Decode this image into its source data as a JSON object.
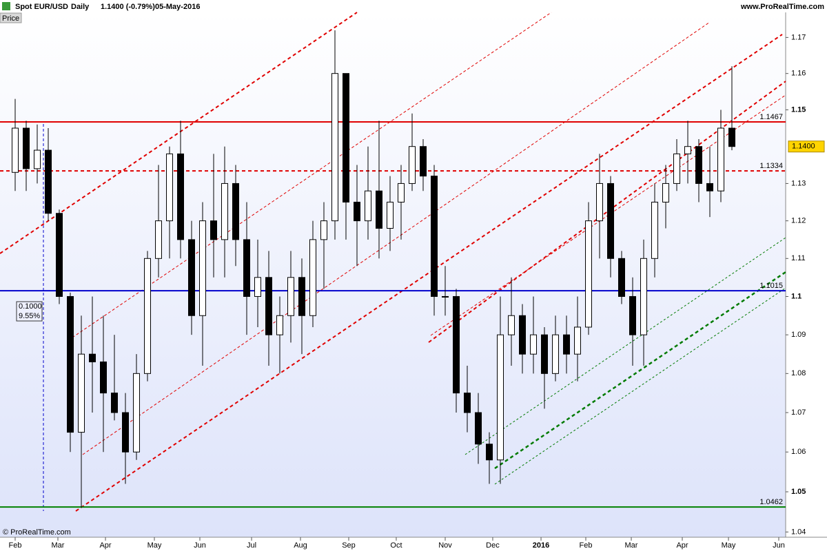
{
  "header": {
    "instrument": "Spot EUR/USD",
    "period": "Daily",
    "quote": "1.1400 (-0.79%)",
    "date": "05-May-2016",
    "site": "www.ProRealTime.com",
    "tab": "Price",
    "copyright": "© ProRealTime.com"
  },
  "chart_data": {
    "type": "candlestick",
    "log_scale": true,
    "up_color": "#ffffff",
    "down_color": "#000000",
    "open": [
      1.133,
      1.145,
      1.134,
      1.139,
      1.122,
      1.1,
      1.065,
      1.085,
      1.083,
      1.075,
      1.07,
      1.06,
      1.08,
      1.11,
      1.12,
      1.138,
      1.115,
      1.095,
      1.12,
      1.115,
      1.13,
      1.115,
      1.1,
      1.105,
      1.09,
      1.095,
      1.105,
      1.095,
      1.115,
      1.12,
      1.16,
      1.125,
      1.12,
      1.128,
      1.118,
      1.125,
      1.13,
      1.14,
      1.132,
      1.1,
      1.1,
      1.075,
      1.07,
      1.062,
      1.058,
      1.09,
      1.095,
      1.085,
      1.09,
      1.08,
      1.09,
      1.085,
      1.092,
      1.12,
      1.13,
      1.11,
      1.1,
      1.09,
      1.11,
      1.125,
      1.13,
      1.138,
      1.14,
      1.13,
      1.128,
      1.145
    ],
    "high": [
      1.153,
      1.147,
      1.146,
      1.145,
      1.123,
      1.101,
      1.095,
      1.1,
      1.095,
      1.09,
      1.075,
      1.085,
      1.112,
      1.135,
      1.14,
      1.147,
      1.12,
      1.125,
      1.138,
      1.14,
      1.135,
      1.125,
      1.115,
      1.112,
      1.1,
      1.112,
      1.11,
      1.12,
      1.125,
      1.172,
      1.16,
      1.135,
      1.14,
      1.147,
      1.132,
      1.135,
      1.149,
      1.142,
      1.135,
      1.108,
      1.102,
      1.082,
      1.075,
      1.065,
      1.1,
      1.105,
      1.098,
      1.1,
      1.092,
      1.095,
      1.095,
      1.1,
      1.125,
      1.138,
      1.132,
      1.112,
      1.105,
      1.115,
      1.13,
      1.135,
      1.142,
      1.147,
      1.142,
      1.14,
      1.15,
      1.162
    ],
    "low": [
      1.128,
      1.128,
      1.13,
      1.12,
      1.098,
      1.06,
      1.046,
      1.07,
      1.06,
      1.068,
      1.052,
      1.058,
      1.078,
      1.105,
      1.11,
      1.11,
      1.09,
      1.082,
      1.105,
      1.105,
      1.108,
      1.09,
      1.092,
      1.082,
      1.08,
      1.088,
      1.085,
      1.092,
      1.102,
      1.115,
      1.115,
      1.108,
      1.115,
      1.11,
      1.112,
      1.115,
      1.128,
      1.128,
      1.095,
      1.095,
      1.07,
      1.065,
      1.057,
      1.052,
      1.052,
      1.082,
      1.08,
      1.08,
      1.071,
      1.078,
      1.08,
      1.078,
      1.09,
      1.11,
      1.105,
      1.098,
      1.082,
      1.082,
      1.105,
      1.118,
      1.128,
      1.13,
      1.125,
      1.121,
      1.125,
      1.139
    ],
    "close": [
      1.145,
      1.134,
      1.139,
      1.122,
      1.1,
      1.065,
      1.085,
      1.083,
      1.075,
      1.07,
      1.06,
      1.08,
      1.11,
      1.12,
      1.138,
      1.115,
      1.095,
      1.12,
      1.115,
      1.13,
      1.115,
      1.1,
      1.105,
      1.09,
      1.095,
      1.105,
      1.095,
      1.115,
      1.12,
      1.16,
      1.125,
      1.12,
      1.128,
      1.118,
      1.125,
      1.13,
      1.14,
      1.132,
      1.1,
      1.1,
      1.075,
      1.07,
      1.062,
      1.058,
      1.09,
      1.095,
      1.085,
      1.09,
      1.08,
      1.09,
      1.085,
      1.092,
      1.12,
      1.13,
      1.11,
      1.1,
      1.09,
      1.11,
      1.125,
      1.13,
      1.138,
      1.14,
      1.13,
      1.128,
      1.145,
      1.14
    ],
    "xlim": [
      -1.375,
      69.875
    ],
    "xticks": [
      {
        "value": 0,
        "label": "Feb"
      },
      {
        "value": 3.875,
        "label": "Mar"
      },
      {
        "value": 8.19,
        "label": "Apr"
      },
      {
        "value": 12.625,
        "label": "May"
      },
      {
        "value": 16.75,
        "label": "Jun"
      },
      {
        "value": 21.44,
        "label": "Jul"
      },
      {
        "value": 25.875,
        "label": "Aug"
      },
      {
        "value": 30.25,
        "label": "Sep"
      },
      {
        "value": 34.56,
        "label": "Oct"
      },
      {
        "value": 39,
        "label": "Nov"
      },
      {
        "value": 43.31,
        "label": "Dec"
      },
      {
        "value": 47.69,
        "label": "2016"
      },
      {
        "value": 51.75,
        "label": "Feb"
      },
      {
        "value": 55.875,
        "label": "Mar"
      },
      {
        "value": 60.5,
        "label": "Apr"
      },
      {
        "value": 64.69,
        "label": "May"
      },
      {
        "value": 69.25,
        "label": "Jun"
      }
    ],
    "ylim": [
      1.037,
      1.177
    ],
    "yticks": [
      1.04,
      1.05,
      1.06,
      1.07,
      1.08,
      1.09,
      1.1,
      1.11,
      1.12,
      1.13,
      1.15,
      1.16,
      1.17
    ],
    "levels": [
      {
        "value": 1.1467,
        "color": "#e00000",
        "dashed": false
      },
      {
        "value": 1.1334,
        "color": "#e00000",
        "dashed": true
      },
      {
        "value": 1.1015,
        "color": "#0000cc",
        "dashed": false
      },
      {
        "value": 1.0462,
        "color": "#008000",
        "dashed": false
      }
    ],
    "last_price": {
      "value": 1.14,
      "label": "1.1400"
    },
    "annotation": [
      "0.1000",
      "9.55%"
    ]
  }
}
